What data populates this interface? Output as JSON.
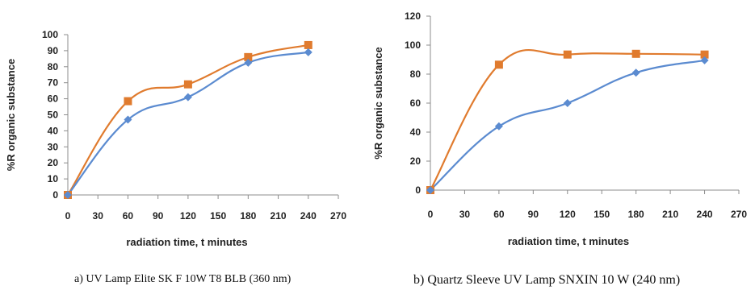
{
  "chart_data": [
    {
      "type": "line",
      "xlabel": "radiation time, t minutes",
      "ylabel": "%R organic substance",
      "xticks": [
        0,
        30,
        60,
        90,
        120,
        150,
        180,
        210,
        240,
        270
      ],
      "yticks": [
        0,
        10,
        20,
        30,
        40,
        50,
        60,
        70,
        80,
        90,
        100
      ],
      "xlim": [
        0,
        270
      ],
      "ylim": [
        0,
        100
      ],
      "grid": false,
      "caption": "a)  UV Lamp Elite SK F 10W T8 BLB (360 nm)",
      "colors": {
        "series_1": "#5b8bd0",
        "series_2": "#e07b2e"
      },
      "series": [
        {
          "marker": "diamond",
          "x": [
            0,
            60,
            120,
            180,
            240
          ],
          "y": [
            0,
            47,
            61,
            82.5,
            89
          ]
        },
        {
          "marker": "square",
          "x": [
            0,
            60,
            120,
            180,
            240
          ],
          "y": [
            0,
            58.5,
            69,
            86,
            93.5
          ]
        }
      ]
    },
    {
      "type": "line",
      "xlabel": "radiation time, t minutes",
      "ylabel": "%R organic substance",
      "xticks": [
        0,
        30,
        60,
        90,
        120,
        150,
        180,
        210,
        240,
        270
      ],
      "yticks": [
        0,
        20,
        40,
        60,
        80,
        100,
        120
      ],
      "xlim": [
        0,
        270
      ],
      "ylim": [
        0,
        120
      ],
      "grid": false,
      "caption": "b) Quartz Sleeve UV Lamp SNXIN 10 W (240 nm)",
      "colors": {
        "series_1": "#5b8bd0",
        "series_2": "#e07b2e"
      },
      "series": [
        {
          "marker": "diamond",
          "x": [
            0,
            60,
            120,
            180,
            240
          ],
          "y": [
            0,
            44,
            60,
            81,
            89.5
          ]
        },
        {
          "marker": "square",
          "x": [
            0,
            60,
            120,
            180,
            240
          ],
          "y": [
            0,
            86.5,
            93.5,
            94,
            93.5
          ]
        }
      ]
    }
  ]
}
